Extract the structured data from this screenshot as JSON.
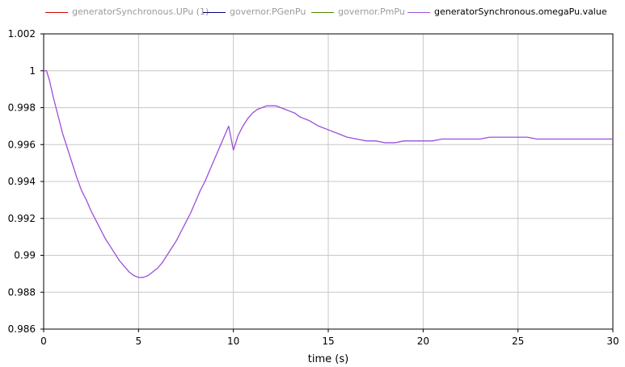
{
  "legend": {
    "items": [
      {
        "label": "generatorSynchronous.UPu (1)",
        "color": "#cc0000",
        "state": "dimmed"
      },
      {
        "label": "governor.PGenPu",
        "color": "#000080",
        "state": "dimmed"
      },
      {
        "label": "governor.PmPu",
        "color": "#4d8c00",
        "state": "dimmed"
      },
      {
        "label": "generatorSynchronous.omegaPu.value",
        "color": "#9b4fd8",
        "state": "active"
      }
    ]
  },
  "chart_data": {
    "type": "line",
    "title": "",
    "xlabel": "time (s)",
    "ylabel": "",
    "xlim": [
      0,
      30
    ],
    "ylim": [
      0.986,
      1.002
    ],
    "grid": true,
    "legend_position": "top",
    "x_ticks": [
      "0",
      "5",
      "10",
      "15",
      "20",
      "25",
      "30"
    ],
    "y_ticks": [
      "1.002",
      "1",
      "0.998",
      "0.996",
      "0.994",
      "0.992",
      "0.99",
      "0.988",
      "0.986"
    ],
    "series": [
      {
        "name": "generatorSynchronous.omegaPu.value",
        "color": "#9b4fd8",
        "x": [
          0,
          0.15,
          0.3,
          0.5,
          0.75,
          1,
          1.25,
          1.5,
          1.75,
          2,
          2.25,
          2.5,
          2.75,
          3,
          3.25,
          3.5,
          3.75,
          4,
          4.25,
          4.5,
          4.75,
          5,
          5.25,
          5.5,
          5.75,
          6,
          6.25,
          6.5,
          6.75,
          7,
          7.25,
          7.5,
          7.75,
          8,
          8.25,
          8.5,
          8.75,
          9,
          9.25,
          9.5,
          9.75,
          10,
          10.25,
          10.5,
          10.75,
          11,
          11.25,
          11.5,
          11.75,
          12,
          12.25,
          12.5,
          12.75,
          13,
          13.25,
          13.5,
          13.75,
          14,
          14.5,
          15,
          15.5,
          16,
          16.5,
          17,
          17.5,
          18,
          18.5,
          19,
          19.5,
          20,
          20.5,
          21,
          21.5,
          22,
          22.5,
          23,
          23.5,
          24,
          24.5,
          25,
          25.5,
          26,
          26.5,
          27,
          27.5,
          28,
          28.5,
          29,
          29.5,
          30
        ],
        "y": [
          1.0,
          1.0,
          0.9995,
          0.9986,
          0.9976,
          0.9966,
          0.9958,
          0.995,
          0.9942,
          0.9935,
          0.993,
          0.9924,
          0.9919,
          0.9914,
          0.9909,
          0.9905,
          0.9901,
          0.9897,
          0.9894,
          0.9891,
          0.9889,
          0.9888,
          0.9888,
          0.9889,
          0.9891,
          0.9893,
          0.9896,
          0.99,
          0.9904,
          0.9908,
          0.9913,
          0.9918,
          0.9923,
          0.9929,
          0.9935,
          0.994,
          0.9946,
          0.9952,
          0.9958,
          0.9964,
          0.997,
          0.9957,
          0.9965,
          0.997,
          0.9974,
          0.9977,
          0.9979,
          0.998,
          0.9981,
          0.9981,
          0.9981,
          0.998,
          0.9979,
          0.9978,
          0.9977,
          0.9975,
          0.9974,
          0.9973,
          0.997,
          0.9968,
          0.9966,
          0.9964,
          0.9963,
          0.9962,
          0.9962,
          0.9961,
          0.9961,
          0.9962,
          0.9962,
          0.9962,
          0.9962,
          0.9963,
          0.9963,
          0.9963,
          0.9963,
          0.9963,
          0.9964,
          0.9964,
          0.9964,
          0.9964,
          0.9964,
          0.9963,
          0.9963,
          0.9963,
          0.9963,
          0.9963,
          0.9963,
          0.9963,
          0.9963,
          0.9963
        ]
      }
    ]
  }
}
